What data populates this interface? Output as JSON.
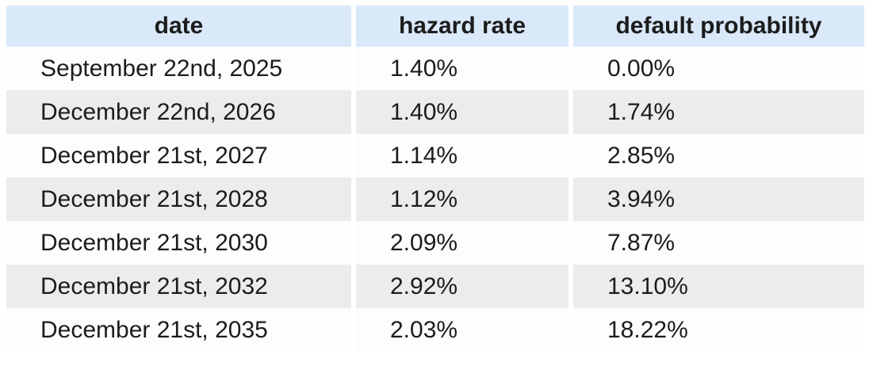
{
  "table": {
    "columns": [
      {
        "key": "date",
        "label": "date"
      },
      {
        "key": "hazard_rate",
        "label": "hazard rate"
      },
      {
        "key": "default_probability",
        "label": "default probability"
      }
    ],
    "rows": [
      {
        "date": "September 22nd, 2025",
        "hazard_rate": "1.40%",
        "default_probability": "0.00%"
      },
      {
        "date": "December 22nd, 2026",
        "hazard_rate": "1.40%",
        "default_probability": "1.74%"
      },
      {
        "date": "December 21st, 2027",
        "hazard_rate": "1.14%",
        "default_probability": "2.85%"
      },
      {
        "date": "December 21st, 2028",
        "hazard_rate": "1.12%",
        "default_probability": "3.94%"
      },
      {
        "date": "December 21st, 2030",
        "hazard_rate": "2.09%",
        "default_probability": "7.87%"
      },
      {
        "date": "December 21st, 2032",
        "hazard_rate": "2.92%",
        "default_probability": "13.10%"
      },
      {
        "date": "December 21st, 2035",
        "hazard_rate": "2.03%",
        "default_probability": "18.22%"
      }
    ]
  },
  "colors": {
    "header_bg": "#d9e9fa",
    "row_bg": "#fdfdfd",
    "row_alt_bg": "#ececec",
    "text": "#1c1c1c"
  },
  "chart_data": {
    "type": "table",
    "title": "",
    "columns": [
      "date",
      "hazard rate",
      "default probability"
    ],
    "rows": [
      [
        "September 22nd, 2025",
        "1.40%",
        "0.00%"
      ],
      [
        "December 22nd, 2026",
        "1.40%",
        "1.74%"
      ],
      [
        "December 21st, 2027",
        "1.14%",
        "2.85%"
      ],
      [
        "December 21st, 2028",
        "1.12%",
        "3.94%"
      ],
      [
        "December 21st, 2030",
        "2.09%",
        "7.87%"
      ],
      [
        "December 21st, 2032",
        "2.92%",
        "13.10%"
      ],
      [
        "December 21st, 2035",
        "2.03%",
        "18.22%"
      ]
    ],
    "hazard_rate_pct": [
      1.4,
      1.4,
      1.14,
      1.12,
      2.09,
      2.92,
      2.03
    ],
    "default_probability_pct": [
      0.0,
      1.74,
      2.85,
      3.94,
      7.87,
      13.1,
      18.22
    ],
    "layout": {
      "header_row_shaded": true,
      "zebra_striping": true,
      "grid": "off"
    }
  }
}
